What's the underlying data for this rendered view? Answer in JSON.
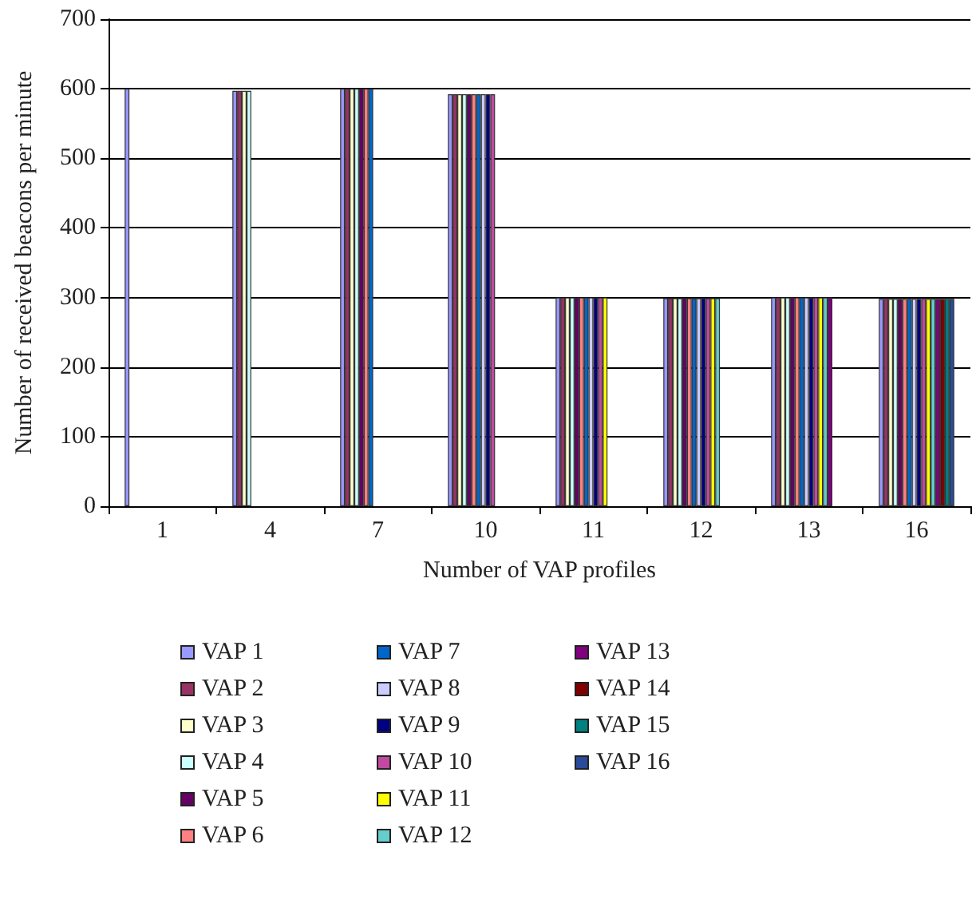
{
  "chart_data": {
    "type": "bar",
    "xlabel": "Number of VAP profiles",
    "ylabel": "Number of received beacons per minute",
    "categories": [
      "1",
      "4",
      "7",
      "10",
      "11",
      "12",
      "13",
      "16"
    ],
    "ylim": [
      0,
      700
    ],
    "yticks": [
      0,
      100,
      200,
      300,
      400,
      500,
      600,
      700
    ],
    "grid": "y",
    "legend": "bottom",
    "series": [
      {
        "name": "VAP 1",
        "color": "#9999ff",
        "values": [
          600,
          597,
          600,
          592,
          300,
          299,
          300,
          298
        ]
      },
      {
        "name": "VAP 2",
        "color": "#993366",
        "values": [
          null,
          597,
          600,
          592,
          300,
          299,
          300,
          298
        ]
      },
      {
        "name": "VAP 3",
        "color": "#ffffcc",
        "values": [
          null,
          597,
          600,
          592,
          300,
          299,
          300,
          298
        ]
      },
      {
        "name": "VAP 4",
        "color": "#ccffff",
        "values": [
          null,
          597,
          600,
          592,
          300,
          299,
          300,
          298
        ]
      },
      {
        "name": "VAP 5",
        "color": "#660066",
        "values": [
          null,
          null,
          600,
          592,
          300,
          299,
          300,
          298
        ]
      },
      {
        "name": "VAP 6",
        "color": "#ff8080",
        "values": [
          null,
          null,
          600,
          592,
          300,
          299,
          300,
          298
        ]
      },
      {
        "name": "VAP 7",
        "color": "#0066cc",
        "values": [
          null,
          null,
          600,
          592,
          300,
          299,
          300,
          298
        ]
      },
      {
        "name": "VAP 8",
        "color": "#ccccff",
        "values": [
          null,
          null,
          null,
          592,
          300,
          299,
          300,
          298
        ]
      },
      {
        "name": "VAP 9",
        "color": "#000080",
        "values": [
          null,
          null,
          null,
          592,
          300,
          299,
          300,
          298
        ]
      },
      {
        "name": "VAP 10",
        "color": "#c04aa0",
        "values": [
          null,
          null,
          null,
          592,
          300,
          299,
          300,
          298
        ]
      },
      {
        "name": "VAP 11",
        "color": "#ffff00",
        "values": [
          null,
          null,
          null,
          null,
          300,
          299,
          300,
          298
        ]
      },
      {
        "name": "VAP 12",
        "color": "#66cccc",
        "values": [
          null,
          null,
          null,
          null,
          null,
          299,
          300,
          298
        ]
      },
      {
        "name": "VAP 13",
        "color": "#800080",
        "values": [
          null,
          null,
          null,
          null,
          null,
          null,
          300,
          298
        ]
      },
      {
        "name": "VAP 14",
        "color": "#800000",
        "values": [
          null,
          null,
          null,
          null,
          null,
          null,
          null,
          298
        ]
      },
      {
        "name": "VAP 15",
        "color": "#008080",
        "values": [
          null,
          null,
          null,
          null,
          null,
          null,
          null,
          298
        ]
      },
      {
        "name": "VAP 16",
        "color": "#2a4a9a",
        "values": [
          null,
          null,
          null,
          null,
          null,
          null,
          null,
          298
        ]
      }
    ]
  }
}
